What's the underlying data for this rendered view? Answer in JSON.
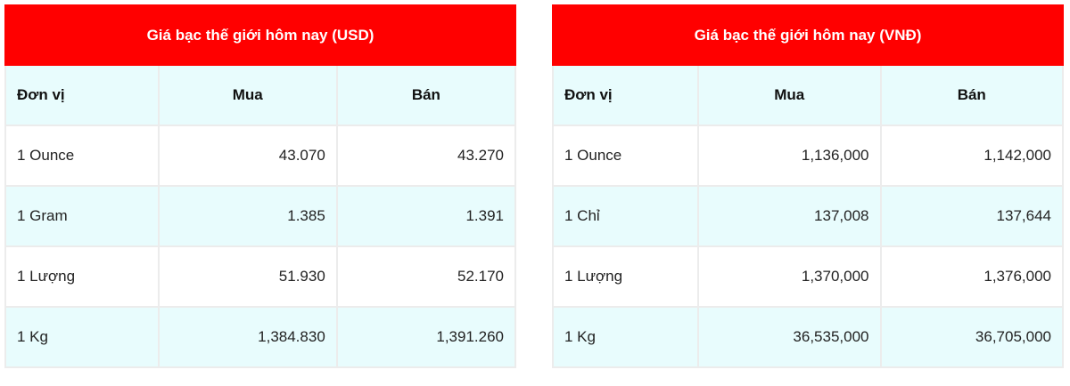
{
  "tables": [
    {
      "title": "Giá bạc thế giới hôm nay (USD)",
      "headers": [
        "Đơn vị",
        "Mua",
        "Bán"
      ],
      "rows": [
        [
          "1 Ounce",
          "43.070",
          "43.270"
        ],
        [
          "1 Gram",
          "1.385",
          "1.391"
        ],
        [
          "1 Lượng",
          "51.930",
          "52.170"
        ],
        [
          "1 Kg",
          "1,384.830",
          "1,391.260"
        ]
      ]
    },
    {
      "title": "Giá bạc thế giới hôm nay (VNĐ)",
      "headers": [
        "Đơn vị",
        "Mua",
        "Bán"
      ],
      "rows": [
        [
          "1 Ounce",
          "1,136,000",
          "1,142,000"
        ],
        [
          "1 Chỉ",
          "137,008",
          "137,644"
        ],
        [
          "1 Lượng",
          "1,370,000",
          "1,376,000"
        ],
        [
          "1 Kg",
          "36,535,000",
          "36,705,000"
        ]
      ]
    }
  ],
  "colors": {
    "header": "#ff0000",
    "alt_row": "#e8fcfd",
    "border": "#ececec"
  }
}
